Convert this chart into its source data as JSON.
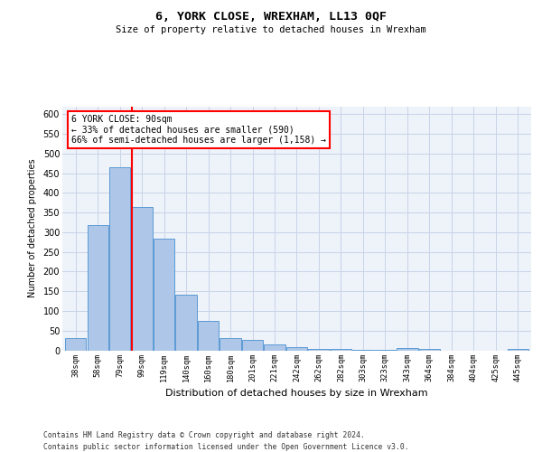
{
  "title": "6, YORK CLOSE, WREXHAM, LL13 0QF",
  "subtitle": "Size of property relative to detached houses in Wrexham",
  "xlabel": "Distribution of detached houses by size in Wrexham",
  "ylabel": "Number of detached properties",
  "categories": [
    "38sqm",
    "58sqm",
    "79sqm",
    "99sqm",
    "119sqm",
    "140sqm",
    "160sqm",
    "180sqm",
    "201sqm",
    "221sqm",
    "242sqm",
    "262sqm",
    "282sqm",
    "303sqm",
    "323sqm",
    "343sqm",
    "364sqm",
    "384sqm",
    "404sqm",
    "425sqm",
    "445sqm"
  ],
  "values": [
    30,
    318,
    465,
    365,
    283,
    142,
    75,
    30,
    27,
    14,
    7,
    4,
    4,
    2,
    2,
    5,
    4,
    0,
    0,
    0,
    4
  ],
  "bar_color": "#aec6e8",
  "bar_edge_color": "#5b9bd5",
  "grid_color": "#c8d4e8",
  "background_color": "#ffffff",
  "plot_bg_color": "#eef2f9",
  "annotation_box_text": "6 YORK CLOSE: 90sqm\n← 33% of detached houses are smaller (590)\n66% of semi-detached houses are larger (1,158) →",
  "ylim": [
    0,
    620
  ],
  "yticks": [
    0,
    50,
    100,
    150,
    200,
    250,
    300,
    350,
    400,
    450,
    500,
    550,
    600
  ],
  "footer_line1": "Contains HM Land Registry data © Crown copyright and database right 2024.",
  "footer_line2": "Contains public sector information licensed under the Open Government Licence v3.0."
}
